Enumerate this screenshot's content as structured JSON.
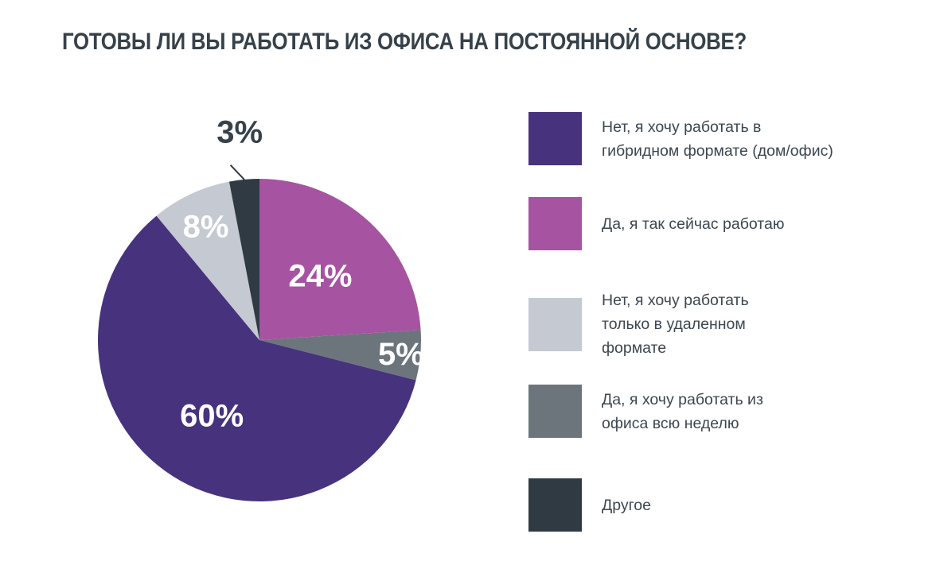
{
  "chart_data": {
    "type": "pie",
    "title": "ГОТОВЫ ЛИ ВЫ РАБОТАТЬ ИЗ ОФИСА НА ПОСТОЯННОЙ ОСНОВЕ?",
    "slices": [
      {
        "label": "Да, я так сейчас работаю",
        "value": 24,
        "display": "24%",
        "color": "#a653a1",
        "label_color": "#ffffff"
      },
      {
        "label": "Да, я хочу работать из офиса всю неделю",
        "value": 5,
        "display": "5%",
        "color": "#6c757c",
        "label_color": "#ffffff"
      },
      {
        "label": "Нет, я хочу работать в гибридном формате (дом/офис)",
        "value": 60,
        "display": "60%",
        "color": "#47327e",
        "label_color": "#ffffff"
      },
      {
        "label": "Нет, я хочу работать только в удаленном формате",
        "value": 8,
        "display": "8%",
        "color": "#c4c9d2",
        "label_color": "#ffffff"
      },
      {
        "label": "Другое",
        "value": 3,
        "display": "3%",
        "color": "#2f3a43",
        "label_color": "#36414a"
      }
    ],
    "legend_placement": "right"
  },
  "legend": [
    {
      "label": "Нет, я хочу работать в\nгибридном формате (дом/офис)",
      "color": "#47327e"
    },
    {
      "label": "Да, я так сейчас работаю",
      "color": "#a653a1"
    },
    {
      "label": "Нет, я хочу работать\nтолько в удаленном\nформате",
      "color": "#c4c9d2"
    },
    {
      "label": "Да, я хочу работать из\nофиса всю неделю",
      "color": "#6c757c"
    },
    {
      "label": "Другое",
      "color": "#2f3a43"
    }
  ]
}
